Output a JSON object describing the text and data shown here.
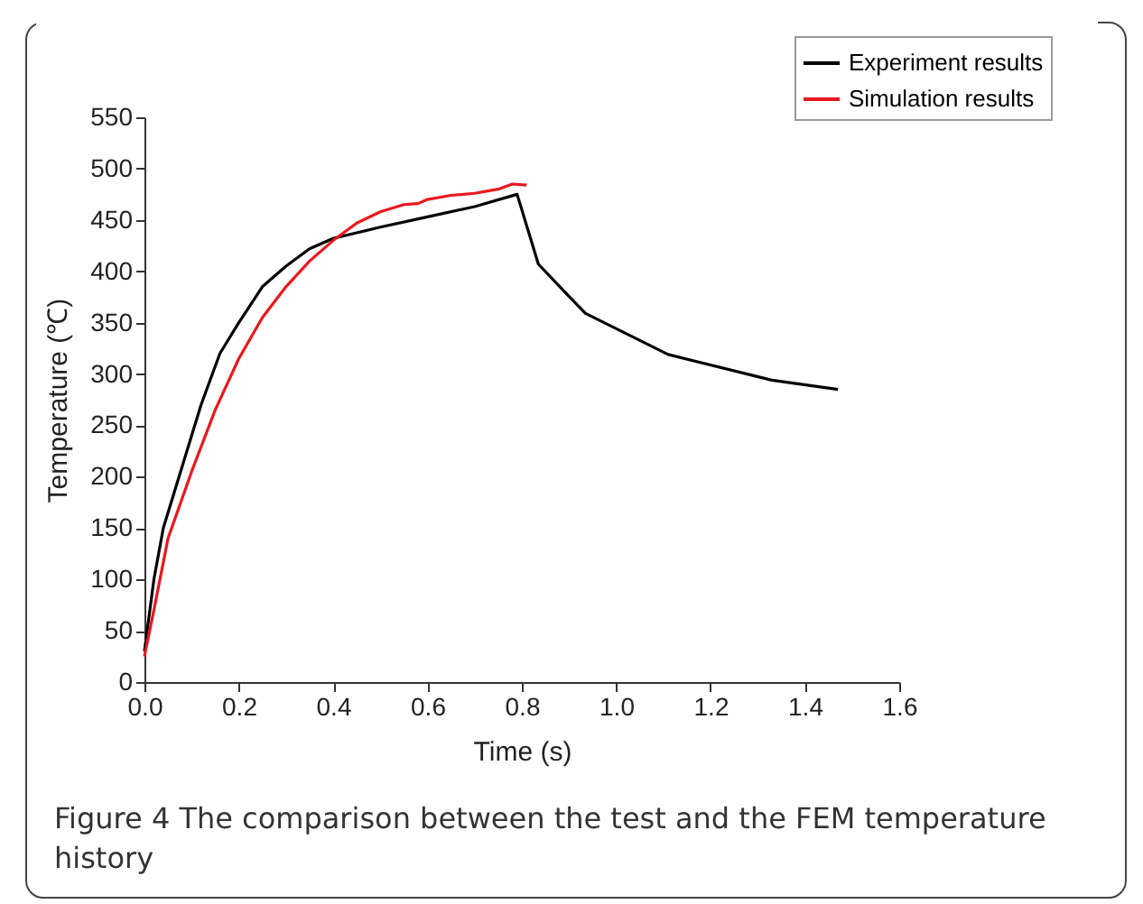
{
  "chart_data": {
    "type": "line",
    "xlabel": "Time (s)",
    "ylabel": "Temperature (℃)",
    "series": [
      {
        "name": "Experiment results",
        "color": "#000000",
        "x": [
          0.0,
          0.02,
          0.04,
          0.08,
          0.12,
          0.16,
          0.2,
          0.25,
          0.3,
          0.35,
          0.4,
          0.5,
          0.6,
          0.7,
          0.79,
          0.835,
          0.897,
          0.935,
          1.11,
          1.33,
          1.47
        ],
        "values": [
          30,
          100,
          150,
          210,
          270,
          320,
          350,
          385,
          405,
          422,
          432,
          443,
          453,
          463,
          475,
          407,
          377,
          359,
          319,
          294,
          285
        ]
      },
      {
        "name": "Simulation results",
        "color": "#e8181e",
        "x": [
          0.0,
          0.02,
          0.05,
          0.1,
          0.15,
          0.2,
          0.25,
          0.3,
          0.35,
          0.4,
          0.45,
          0.5,
          0.55,
          0.58,
          0.6,
          0.65,
          0.7,
          0.75,
          0.78,
          0.81
        ],
        "values": [
          25,
          70,
          140,
          205,
          265,
          315,
          355,
          385,
          410,
          430,
          447,
          458,
          465,
          466,
          470,
          474,
          476,
          480,
          485,
          484
        ]
      }
    ],
    "xlim": [
      0,
      1.6
    ],
    "xticks": [
      {
        "value": 0,
        "label": "0.0"
      },
      0.2,
      0.4,
      0.6,
      0.8,
      {
        "value": 1,
        "label": "1.0"
      },
      1.2,
      1.4,
      1.6
    ],
    "ylim": [
      0,
      550
    ],
    "yticks": [
      0,
      50,
      100,
      150,
      200,
      250,
      300,
      350,
      400,
      450,
      500,
      550
    ],
    "legend": "top right",
    "line_style": "solid",
    "marker": "none",
    "annotations": [
      "Figure 4  The comparison between the test and the FEM temperature history"
    ]
  }
}
